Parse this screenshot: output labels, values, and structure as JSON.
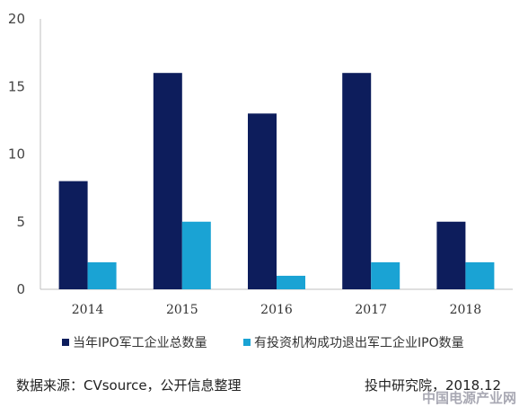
{
  "chart_data": {
    "type": "bar",
    "categories": [
      "2014",
      "2015",
      "2016",
      "2017",
      "2018"
    ],
    "series": [
      {
        "name": "当年IPO军工企业总数量",
        "color": "#0d1d5c",
        "values": [
          8,
          16,
          13,
          16,
          5
        ]
      },
      {
        "name": "有投资机构成功退出军工企业IPO数量",
        "color": "#1aa3d4",
        "values": [
          2,
          5,
          1,
          2,
          2
        ]
      }
    ],
    "ylim": [
      0,
      20
    ],
    "yticks": [
      0,
      5,
      10,
      15,
      20
    ],
    "grid": false,
    "legend_position": "bottom"
  },
  "footer": {
    "source": "数据来源：CVsource，公开信息整理",
    "credit": "投中研究院，2018.12"
  },
  "watermark": "中国电源产业网"
}
